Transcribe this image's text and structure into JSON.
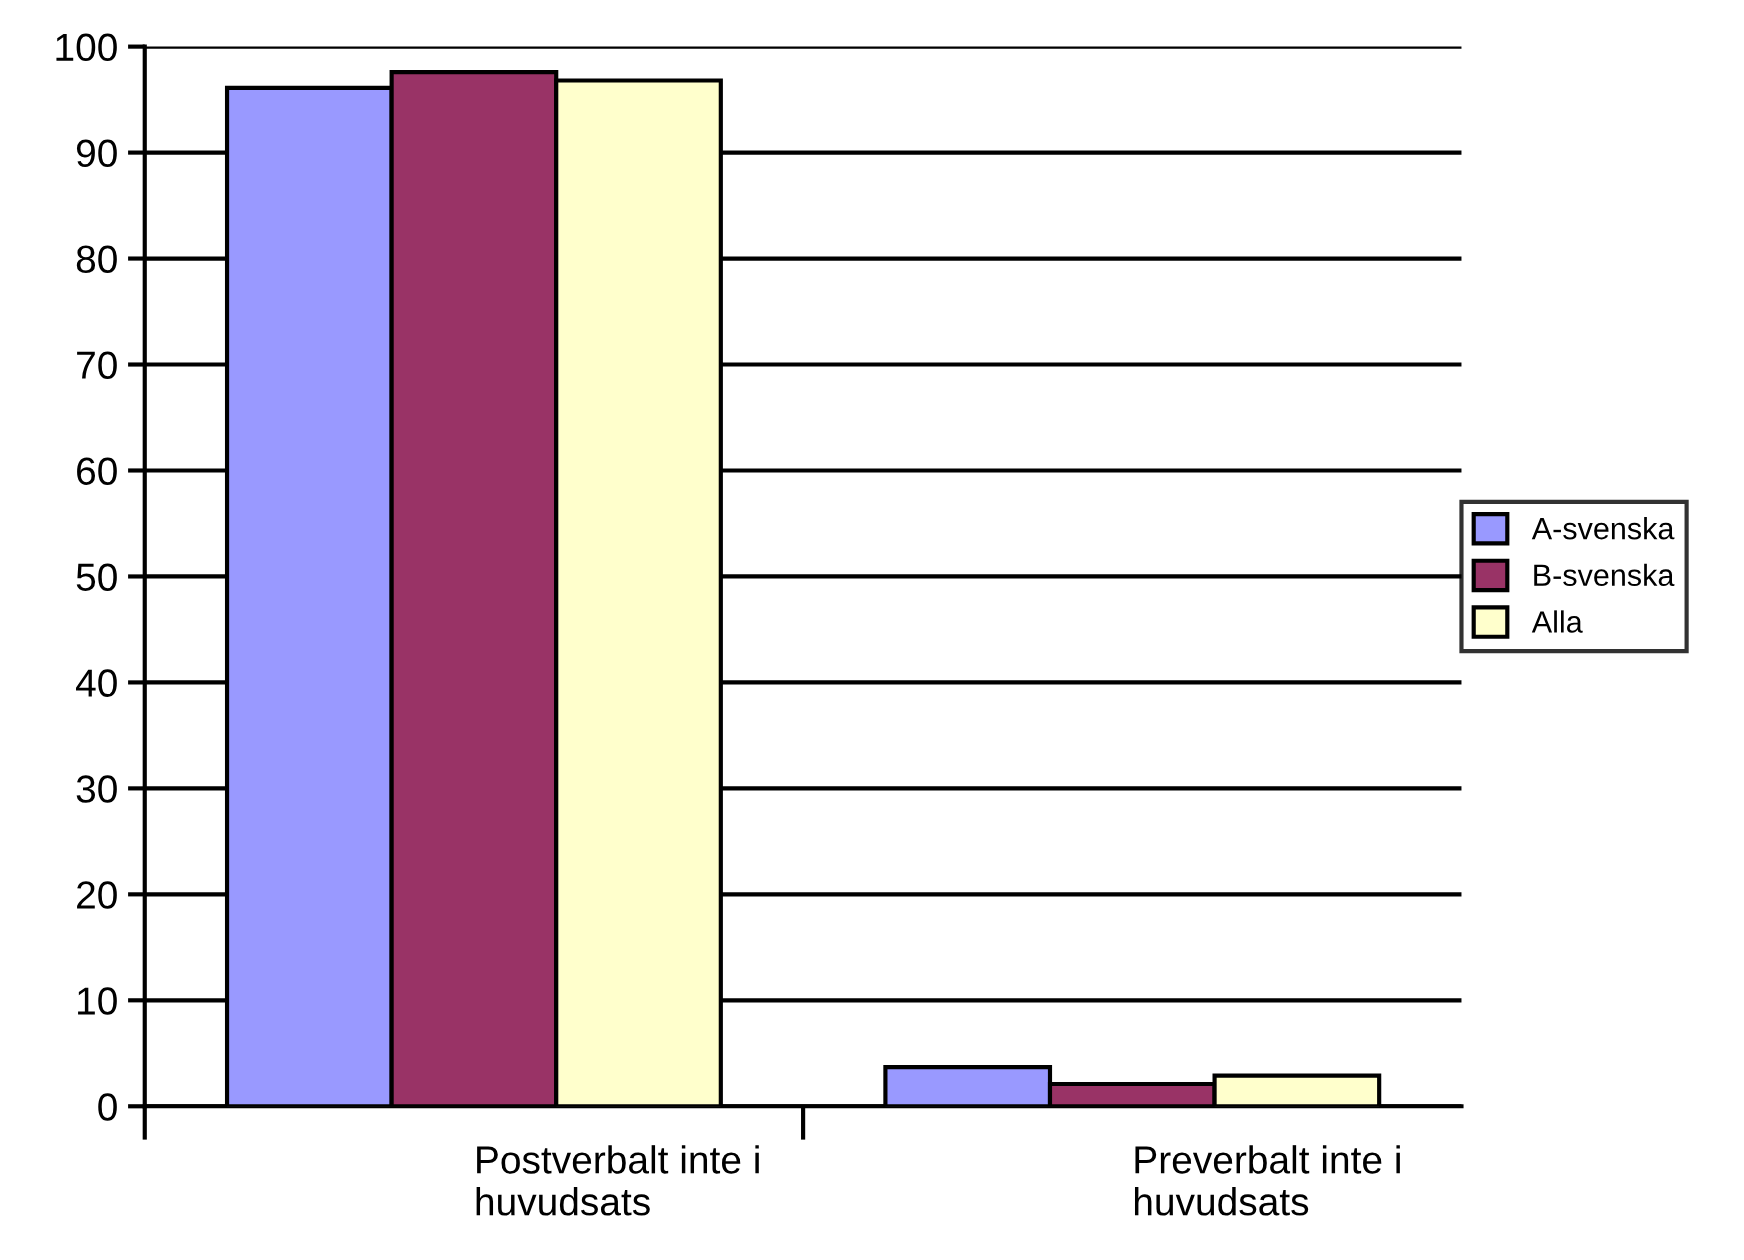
{
  "chart_data": {
    "type": "bar",
    "categories": [
      "Postverbalt inte i huvudsats",
      "Preverbalt inte i huvudsats"
    ],
    "series": [
      {
        "name": "A-svenska",
        "color": "#9999ff",
        "values": [
          96.1,
          3.7
        ]
      },
      {
        "name": "B-svenska",
        "color": "#993366",
        "values": [
          97.6,
          2.1
        ]
      },
      {
        "name": "Alla",
        "color": "#ffffcc",
        "values": [
          96.8,
          2.9
        ]
      }
    ],
    "ylim": [
      0,
      100
    ],
    "yticks": [
      0,
      10,
      20,
      30,
      40,
      50,
      60,
      70,
      80,
      90,
      100
    ],
    "grid": "y",
    "legend": "right"
  }
}
